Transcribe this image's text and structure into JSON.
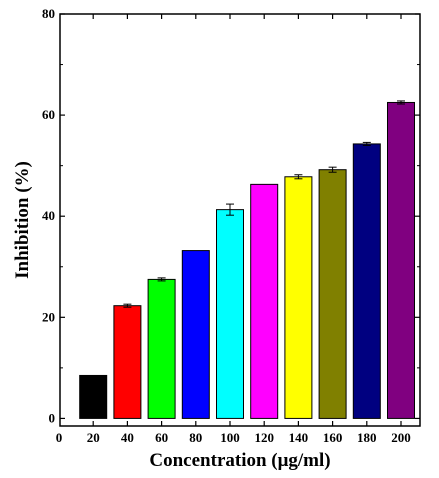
{
  "chart_data": {
    "type": "bar",
    "title": "",
    "xlabel": "Concentration (μg/ml)",
    "ylabel": "Inhibition (%)",
    "categories": [
      "20",
      "40",
      "60",
      "80",
      "100",
      "120",
      "140",
      "160",
      "180",
      "200"
    ],
    "x_extra_tick": "0",
    "values": [
      8.5,
      22.3,
      27.5,
      33.2,
      41.3,
      46.3,
      47.8,
      49.2,
      54.3,
      62.5
    ],
    "errors": [
      0,
      0.3,
      0.3,
      0,
      1.1,
      0,
      0.4,
      0.5,
      0.3,
      0.3
    ],
    "colors": [
      "#000000",
      "#ff0000",
      "#00ff00",
      "#0000ff",
      "#00ffff",
      "#ff00ff",
      "#ffff00",
      "#808000",
      "#000080",
      "#800080"
    ],
    "ylim": [
      -1.5,
      80
    ],
    "yticks": [
      0,
      20,
      40,
      60,
      80
    ],
    "grid": false,
    "legend": "none"
  }
}
